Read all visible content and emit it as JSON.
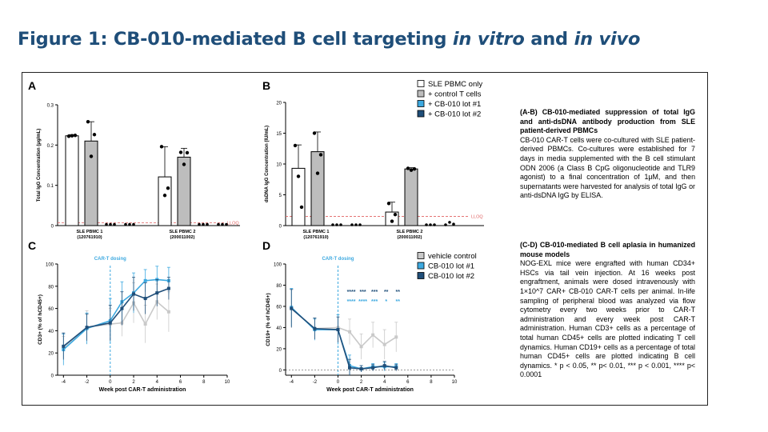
{
  "title": {
    "prefix": "Figure 1: CB-010-mediated B cell targeting ",
    "italic1": "in vitro",
    "mid": " and ",
    "italic2": "in vivo"
  },
  "colors": {
    "title": "#1f4e79",
    "open": "#ffffff",
    "control": "#bdbdbd",
    "lot1": "#3da9e0",
    "lot2": "#1f4e79",
    "vehicle": "#c9c9c9",
    "lloq": "#e06060",
    "dosing": "#3da9e0"
  },
  "text_ab": {
    "heading": "(A-B) CB-010-mediated suppression of total IgG and anti-dsDNA antibody production from SLE patient-derived PBMCs",
    "body": "CB-010 CAR-T cells were co-cultured with SLE patient-derived PBMCs. Co-cultures were established for 7 days in media supplemented with the B cell stimulant ODN 2006 (a Class B CpG oligonucleotide and TLR9 agonist) to a final concentration of 1μM, and then supernatants were harvested for analysis of total IgG or anti-dsDNA IgG by ELISA."
  },
  "text_cd": {
    "heading": "(C-D) CB-010-mediated B cell aplasia in humanized mouse models",
    "body": "NOG-EXL mice were engrafted with human CD34+ HSCs via tail vein injection. At 16 weeks post engraftment, animals were dosed intravenously with 1×10^7 CAR+ CB-010 CAR-T cells per animal. In-life sampling of peripheral blood was analyzed via flow cytometry every two weeks prior to CAR-T administration and every week post CAR-T administration. Human CD3+ cells as a percentage of total human CD45+ cells are plotted indicating T cell dynamics. Human CD19+ cells as a percentage of total human CD45+ cells are plotted indicating B cell dynamics. * p < 0.05, ** p< 0.01, *** p < 0.001, **** p< 0.0001"
  },
  "chart_data": [
    {
      "panel": "A",
      "type": "bar",
      "ylabel": "Total IgG Concentration (μg/mL)",
      "ylim": [
        0,
        0.3
      ],
      "yticks": [
        0.0,
        0.1,
        0.2,
        0.3
      ],
      "groups": [
        {
          "label": "SLE PBMC 1",
          "sublabel": "(120761910)",
          "bars": [
            {
              "series": "SLE PBMC only",
              "value": 0.223,
              "err": 0.003,
              "points": [
                0.222,
                0.223,
                0.224
              ]
            },
            {
              "series": "+ control T cells",
              "value": 0.21,
              "err": 0.048,
              "points": [
                0.258,
                0.226,
                0.172
              ]
            },
            {
              "series": "+ CB-010 lot #1",
              "value": 0.001,
              "err": 0,
              "points": [
                0.001,
                0.001,
                0.001
              ]
            },
            {
              "series": "+ CB-010 lot #2",
              "value": 0.001,
              "err": 0,
              "points": [
                0.001,
                0.001,
                0.001
              ]
            }
          ]
        },
        {
          "label": "SLE PBMC 2",
          "sublabel": "(200011002)",
          "bars": [
            {
              "series": "SLE PBMC only",
              "value": 0.121,
              "err": 0.075,
              "points": [
                0.196,
                0.093,
                0.075
              ]
            },
            {
              "series": "+ control T cells",
              "value": 0.17,
              "err": 0.022,
              "points": [
                0.182,
                0.181,
                0.152
              ]
            },
            {
              "series": "+ CB-010 lot #1",
              "value": 0.001,
              "err": 0,
              "points": [
                0.001,
                0.001,
                0.001
              ]
            },
            {
              "series": "+ CB-010 lot #2",
              "value": 0.001,
              "err": 0,
              "points": [
                0.001,
                0.001,
                0.001
              ]
            }
          ]
        }
      ],
      "lloq": {
        "value": 0.007,
        "label": "LLOQ"
      }
    },
    {
      "panel": "B",
      "type": "bar",
      "ylabel": "dsDNA IgG Concentration (IU/mL)",
      "ylim": [
        0,
        20
      ],
      "yticks": [
        0,
        5,
        10,
        15,
        20
      ],
      "groups": [
        {
          "label": "SLE PBMC 1",
          "sublabel": "(120761910)",
          "bars": [
            {
              "series": "SLE PBMC only",
              "value": 9.3,
              "err": 3.8,
              "points": [
                13.0,
                8.0,
                3.0
              ]
            },
            {
              "series": "+ control T cells",
              "value": 12.0,
              "err": 3.2,
              "points": [
                15.0,
                11.5,
                8.5
              ]
            },
            {
              "series": "+ CB-010 lot #1",
              "value": 0.0,
              "err": 0,
              "points": [
                0.0,
                0.0,
                0.0
              ]
            },
            {
              "series": "+ CB-010 lot #2",
              "value": 0.0,
              "err": 0,
              "points": [
                0.0,
                0.0,
                0.0
              ]
            }
          ]
        },
        {
          "label": "SLE PBMC 2",
          "sublabel": "(200011002)",
          "bars": [
            {
              "series": "SLE PBMC only",
              "value": 2.2,
              "err": 1.6,
              "points": [
                3.6,
                1.8,
                0.7
              ]
            },
            {
              "series": "+ control T cells",
              "value": 9.2,
              "err": 0.2,
              "points": [
                9.3,
                9.2,
                9.0
              ]
            },
            {
              "series": "+ CB-010 lot #1",
              "value": 0.0,
              "err": 0,
              "points": [
                0.0,
                0.0,
                0.0
              ]
            },
            {
              "series": "+ CB-010 lot #2",
              "value": 0.2,
              "err": 0.2,
              "points": [
                0.0,
                0.4,
                0.1
              ]
            }
          ]
        }
      ],
      "lloq": {
        "value": 1.5,
        "label": "LLOQ"
      },
      "legend": [
        "SLE PBMC only",
        "+ control T cells",
        "+ CB-010 lot #1",
        "+ CB-010 lot #2"
      ]
    },
    {
      "panel": "C",
      "type": "line",
      "xlabel": "Week post CAR-T administration",
      "ylabel": "CD3+ (% of hCD45+)",
      "xlim": [
        -4.5,
        10
      ],
      "xticks": [
        -4,
        -2,
        0,
        2,
        4,
        6,
        8,
        10
      ],
      "ylim": [
        0,
        100
      ],
      "yticks": [
        0,
        20,
        40,
        60,
        80,
        100
      ],
      "x": [
        -4,
        -2,
        0,
        1,
        2,
        3,
        4,
        5
      ],
      "dosing": {
        "x": 0,
        "label": "CAR-T dosing"
      },
      "series": [
        {
          "name": "vehicle control",
          "values": [
            25,
            43,
            46,
            47,
            65,
            46,
            66,
            57
          ],
          "err": [
            10,
            15,
            14,
            12,
            18,
            17,
            16,
            18
          ]
        },
        {
          "name": "CB-010 lot #1",
          "values": [
            23,
            42,
            49,
            66,
            74,
            85,
            86,
            85
          ],
          "err": [
            14,
            14,
            20,
            18,
            18,
            10,
            12,
            12
          ]
        },
        {
          "name": "CB-010 lot #2",
          "values": [
            26,
            43,
            47,
            60,
            73,
            69,
            74,
            78
          ],
          "err": [
            12,
            12,
            16,
            15,
            15,
            14,
            12,
            10
          ]
        }
      ]
    },
    {
      "panel": "D",
      "type": "line",
      "xlabel": "Week post CAR-T administration",
      "ylabel": "CD19+ (% of hCD45+)",
      "xlim": [
        -4.5,
        10
      ],
      "xticks": [
        -4,
        -2,
        0,
        2,
        4,
        6,
        8,
        10
      ],
      "ylim": [
        -5,
        100
      ],
      "yticks": [
        0,
        20,
        40,
        60,
        80,
        100
      ],
      "x": [
        -4,
        -2,
        0,
        1,
        2,
        3,
        4,
        5
      ],
      "dosing": {
        "x": 0,
        "label": "CAR-T dosing"
      },
      "series": [
        {
          "name": "vehicle control",
          "values": [
            58,
            39,
            40,
            36,
            22,
            33,
            24,
            31
          ],
          "err": [
            18,
            10,
            12,
            12,
            12,
            12,
            14,
            14
          ]
        },
        {
          "name": "CB-010 lot #1",
          "values": [
            59,
            38,
            38,
            4,
            1,
            3,
            3,
            3
          ],
          "err": [
            18,
            10,
            14,
            10,
            3,
            3,
            4,
            3
          ]
        },
        {
          "name": "CB-010 lot #2",
          "values": [
            58,
            39,
            38,
            2,
            1,
            2,
            4,
            2
          ],
          "err": [
            18,
            10,
            12,
            8,
            3,
            3,
            4,
            3
          ]
        }
      ],
      "significance": {
        "lot2": [
          {
            "x": 1,
            "label": "****"
          },
          {
            "x": 2,
            "label": "***"
          },
          {
            "x": 3,
            "label": "***"
          },
          {
            "x": 4,
            "label": "**"
          },
          {
            "x": 5,
            "label": "**"
          }
        ],
        "lot1": [
          {
            "x": 1,
            "label": "****"
          },
          {
            "x": 2,
            "label": "****"
          },
          {
            "x": 3,
            "label": "***"
          },
          {
            "x": 4,
            "label": "*"
          },
          {
            "x": 5,
            "label": "**"
          }
        ]
      }
    }
  ]
}
